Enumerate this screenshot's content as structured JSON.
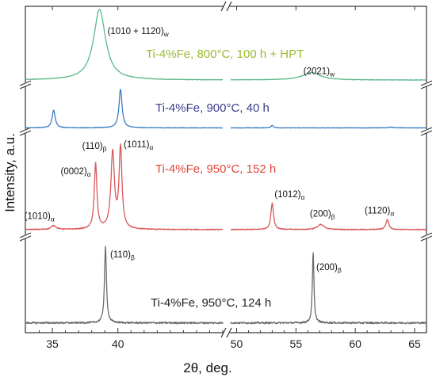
{
  "chart_data": {
    "type": "line",
    "xlabel": "2θ, deg.",
    "ylabel": "Intensity, a.u.",
    "x_segments": [
      [
        33,
        48
      ],
      [
        49.5,
        66
      ]
    ],
    "x_ticks": [
      35,
      40,
      50,
      55,
      60,
      65
    ],
    "y_axis_broken": true,
    "x_axis_broken": true,
    "grid": false,
    "series": [
      {
        "name": "Ti-4%Fe, 800°C, 100 h + HPT",
        "color": "#5cb88a",
        "label_color": "#9bbb2c",
        "noise": 0.003,
        "baseline": 0.02,
        "peaks": [
          {
            "pos": 38.6,
            "h": 0.94,
            "w": 0.55,
            "label": "(1010 + 1120)",
            "sub": "w"
          },
          {
            "pos": 56.3,
            "h": 0.1,
            "w": 0.9,
            "label": "(2021)",
            "sub": "w"
          }
        ]
      },
      {
        "name": "Ti-4%Fe, 900°C, 40 h",
        "color": "#3d7ec4",
        "label_color": "#3d3c8e",
        "noise": 0.006,
        "baseline": 0.03,
        "peaks": [
          {
            "pos": 35.1,
            "h": 0.42,
            "w": 0.14
          },
          {
            "pos": 40.2,
            "h": 0.92,
            "w": 0.14
          },
          {
            "pos": 53.0,
            "h": 0.06,
            "w": 0.12
          },
          {
            "pos": 63.0,
            "h": 0.02,
            "w": 0.2
          }
        ]
      },
      {
        "name": "Ti-4%Fe, 950°C, 152 h",
        "color": "#d9585c",
        "label_color": "#e0463a",
        "noise": 0.004,
        "baseline": 0.025,
        "peaks": [
          {
            "pos": 35.1,
            "h": 0.04,
            "w": 0.22,
            "label": "(1010)",
            "sub": "α"
          },
          {
            "pos": 38.3,
            "h": 0.66,
            "w": 0.12,
            "label": "(0002)",
            "sub": "α"
          },
          {
            "pos": 39.6,
            "h": 0.77,
            "w": 0.16,
            "label": "(110)",
            "sub": "β"
          },
          {
            "pos": 40.2,
            "h": 0.81,
            "w": 0.13,
            "label": "(1011)",
            "sub": "α"
          },
          {
            "pos": 53.0,
            "h": 0.27,
            "w": 0.13,
            "label": "(1012)",
            "sub": "α"
          },
          {
            "pos": 57.1,
            "h": 0.05,
            "w": 0.35,
            "label": "(200)",
            "sub": "β"
          },
          {
            "pos": 62.7,
            "h": 0.1,
            "w": 0.15,
            "label": "(1120)",
            "sub": "α"
          }
        ]
      },
      {
        "name": "Ti-4%Fe, 950°C, 124 h",
        "color": "#6b6b6b",
        "label_color": "#222222",
        "noise": 0.01,
        "baseline": 0.04,
        "peaks": [
          {
            "pos": 39.05,
            "h": 0.88,
            "w": 0.09,
            "label": "(110)",
            "sub": "β"
          },
          {
            "pos": 56.45,
            "h": 0.82,
            "w": 0.08,
            "label": "(200)",
            "sub": "β"
          }
        ]
      }
    ]
  }
}
